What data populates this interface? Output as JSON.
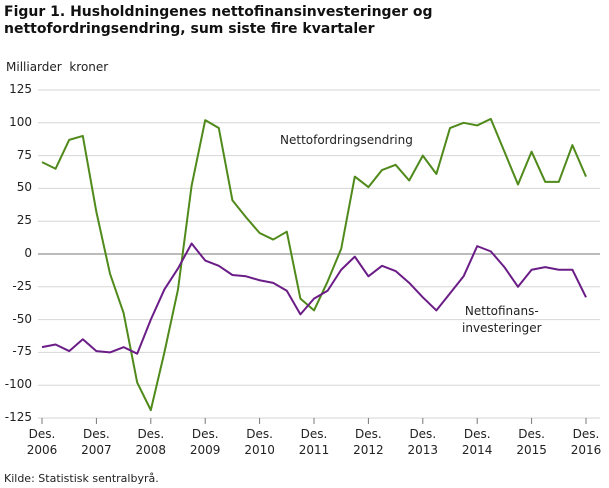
{
  "chart_data": {
    "type": "line",
    "title": "Figur 1. Husholdningenes nettofinansinvesteringer og nettofordringsendring, sum siste fire kvartaler",
    "y_label": "Milliarder  kroner",
    "source": "Kilde: Statistisk sentralbyrå.",
    "categories": [
      "Des. 2006",
      null,
      null,
      null,
      "Des. 2007",
      null,
      null,
      null,
      "Des. 2008",
      null,
      null,
      null,
      "Des. 2009",
      null,
      null,
      null,
      "Des. 2010",
      null,
      null,
      null,
      "Des. 2011",
      null,
      null,
      null,
      "Des. 2012",
      null,
      null,
      null,
      "Des. 2013",
      null,
      null,
      null,
      "Des. 2014",
      null,
      null,
      null,
      "Des. 2015",
      null,
      null,
      null,
      "Des. 2016"
    ],
    "series": [
      {
        "name": "Nettofordringsendring",
        "color": "#4f8a1b",
        "values": [
          70,
          65,
          87,
          90,
          32,
          -15,
          -45,
          -98,
          -119,
          -75,
          -27,
          52,
          102,
          96,
          41,
          28,
          16,
          11,
          17,
          -34,
          -43,
          -21,
          4,
          59,
          51,
          64,
          68,
          56,
          75,
          61,
          96,
          100,
          98,
          103,
          78,
          53,
          78,
          55,
          55,
          83,
          59
        ]
      },
      {
        "name": "Nettofinans-\ninvesteringer",
        "color": "#6b1d87",
        "values": [
          -71,
          -69,
          -74,
          -65,
          -74,
          -75,
          -71,
          -76,
          -50,
          -27,
          -11,
          8,
          -5,
          -9,
          -16,
          -17,
          -20,
          -22,
          -28,
          -46,
          -34,
          -28,
          -12,
          -2,
          -17,
          -9,
          -13,
          -22,
          -33,
          -43,
          -30,
          -17,
          6,
          2,
          -10,
          -25,
          -12,
          -10,
          -12,
          -12,
          -33
        ]
      }
    ],
    "ylim": [
      -125,
      125
    ],
    "yticks": [
      -125,
      -100,
      -75,
      -50,
      -25,
      0,
      25,
      50,
      75,
      100,
      125
    ],
    "grid": true
  }
}
